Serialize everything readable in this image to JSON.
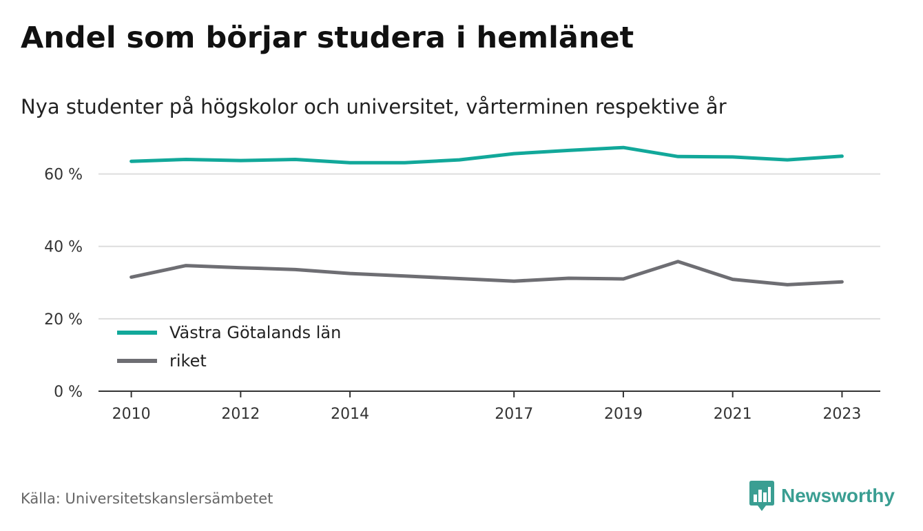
{
  "header": {
    "title": "Andel som börjar studera i hemlänet",
    "subtitle": "Nya studenter på högskolor och universitet, vårterminen respektive år"
  },
  "footer": {
    "source": "Källa: Universitetskanslersämbetet",
    "brand": "Newsworthy"
  },
  "colors": {
    "series_1": "#12a89a",
    "series_2": "#6e6e73",
    "grid": "#dddddd",
    "axis": "#333333",
    "brand": "#3a9e92"
  },
  "icons": {
    "brand": "bar-chart-speech-bubble-icon"
  },
  "chart_data": {
    "type": "line",
    "title": "Andel som börjar studera i hemlänet",
    "subtitle": "Nya studenter på högskolor och universitet, vårterminen respektive år",
    "x": [
      2010,
      2011,
      2012,
      2013,
      2014,
      2015,
      2016,
      2017,
      2018,
      2019,
      2020,
      2021,
      2022,
      2023
    ],
    "x_ticks": [
      2010,
      2012,
      2014,
      2017,
      2019,
      2021,
      2023
    ],
    "x_tick_labels": [
      "2010",
      "2012",
      "2014",
      "2017",
      "2019",
      "2021",
      "2023"
    ],
    "y_ticks": [
      0,
      20,
      40,
      60
    ],
    "y_tick_labels": [
      "0 %",
      "20 %",
      "40 %",
      "60 %"
    ],
    "ylim": [
      0,
      70
    ],
    "xlim": [
      2009.4,
      2023.7
    ],
    "grid": true,
    "legend_position": "bottom-left",
    "series": [
      {
        "name": "Västra Götalands län",
        "values": [
          63.5,
          64.0,
          63.7,
          64.0,
          63.1,
          63.1,
          63.9,
          65.6,
          66.5,
          67.3,
          64.8,
          64.7,
          63.9,
          64.9
        ]
      },
      {
        "name": "riket",
        "values": [
          31.5,
          34.7,
          34.1,
          33.6,
          32.5,
          31.8,
          31.1,
          30.4,
          31.2,
          31.0,
          35.8,
          30.9,
          29.4,
          30.2
        ]
      }
    ]
  }
}
